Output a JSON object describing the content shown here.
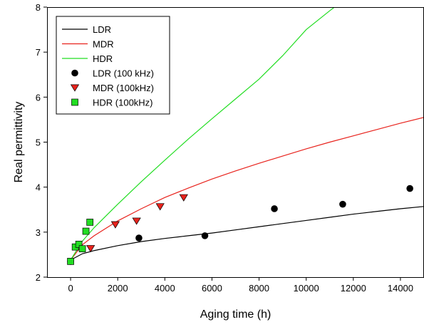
{
  "chart_data": {
    "type": "line",
    "xlabel": "Aging time (h)",
    "ylabel": "Real permittivity",
    "xlim": [
      -1000,
      15000
    ],
    "ylim": [
      2,
      8
    ],
    "x_ticks": [
      0,
      2000,
      4000,
      6000,
      8000,
      10000,
      12000,
      14000
    ],
    "x_tick_labels": [
      "0",
      "2000",
      "4000",
      "6000",
      "8000",
      "10000",
      "12000",
      "14000"
    ],
    "y_ticks": [
      2,
      3,
      4,
      5,
      6,
      7,
      8
    ],
    "y_tick_labels": [
      "2",
      "3",
      "4",
      "5",
      "6",
      "7",
      "8"
    ],
    "grid": false,
    "legend_position": "top-left",
    "curves": [
      {
        "name": "LDR",
        "color": "#000000",
        "x": [
          0,
          500,
          1000,
          2000,
          3000,
          4000,
          5000,
          6000,
          7000,
          8000,
          9000,
          10000,
          11000,
          12000,
          13000,
          14000,
          15000
        ],
        "y": [
          2.38,
          2.52,
          2.59,
          2.7,
          2.79,
          2.86,
          2.92,
          2.98,
          3.05,
          3.12,
          3.19,
          3.26,
          3.33,
          3.4,
          3.46,
          3.52,
          3.57
        ]
      },
      {
        "name": "MDR",
        "color": "#e8231d",
        "x": [
          0,
          500,
          1000,
          2000,
          3000,
          4000,
          5000,
          6000,
          7000,
          8000,
          9000,
          10000,
          11000,
          12000,
          13000,
          14000,
          15000
        ],
        "y": [
          2.38,
          2.72,
          2.92,
          3.25,
          3.52,
          3.77,
          3.98,
          4.18,
          4.36,
          4.53,
          4.69,
          4.85,
          5.0,
          5.14,
          5.28,
          5.42,
          5.55
        ]
      },
      {
        "name": "HDR",
        "color": "#22dd22",
        "x": [
          0,
          500,
          1000,
          2000,
          3000,
          4000,
          5000,
          6000,
          7000,
          8000,
          9000,
          10000,
          11000,
          11200
        ],
        "y": [
          2.38,
          2.8,
          3.1,
          3.62,
          4.12,
          4.6,
          5.07,
          5.52,
          5.96,
          6.4,
          6.92,
          7.5,
          7.92,
          8.0
        ]
      }
    ],
    "scatter": [
      {
        "name": "LDR (100 kHz)",
        "marker": "circle",
        "color": "#000000",
        "x": [
          0,
          2900,
          5700,
          8650,
          11550,
          14400
        ],
        "y": [
          2.35,
          2.87,
          2.92,
          3.52,
          3.62,
          3.97
        ]
      },
      {
        "name": "MDR (100kHz)",
        "marker": "triangle-down",
        "color": "#e8231d",
        "x": [
          850,
          1900,
          2800,
          3800,
          4800
        ],
        "y": [
          2.64,
          3.17,
          3.25,
          3.57,
          3.77
        ]
      },
      {
        "name": "HDR (100kHz)",
        "marker": "square",
        "color": "#22dd22",
        "x": [
          0,
          200,
          350,
          500,
          650,
          820
        ],
        "y": [
          2.35,
          2.67,
          2.73,
          2.63,
          3.02,
          3.22
        ]
      }
    ]
  }
}
